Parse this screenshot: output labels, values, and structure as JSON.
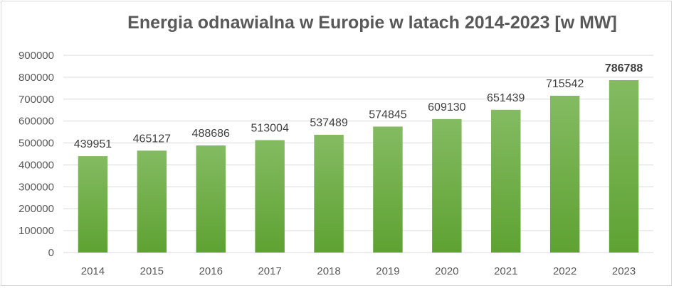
{
  "chart_data": {
    "type": "bar",
    "title": "Energia odnawialna w Europie w latach 2014-2023 [w MW]",
    "categories": [
      "2014",
      "2015",
      "2016",
      "2017",
      "2018",
      "2019",
      "2020",
      "2021",
      "2022",
      "2023"
    ],
    "values": [
      439951,
      465127,
      488686,
      513004,
      537489,
      574845,
      609130,
      651439,
      715542,
      786788
    ],
    "data_labels": [
      "439951",
      "465127",
      "488686",
      "513004",
      "537489",
      "574845",
      "609130",
      "651439",
      "715542",
      "786788"
    ],
    "ylim": [
      0,
      900000
    ],
    "yticks": [
      "0",
      "100000",
      "200000",
      "300000",
      "400000",
      "500000",
      "600000",
      "700000",
      "800000",
      "900000"
    ],
    "grid": true,
    "legend": "none",
    "bar_color_top": "#84bb62",
    "bar_color_bottom": "#5ea232",
    "highlight_last_label": true
  }
}
